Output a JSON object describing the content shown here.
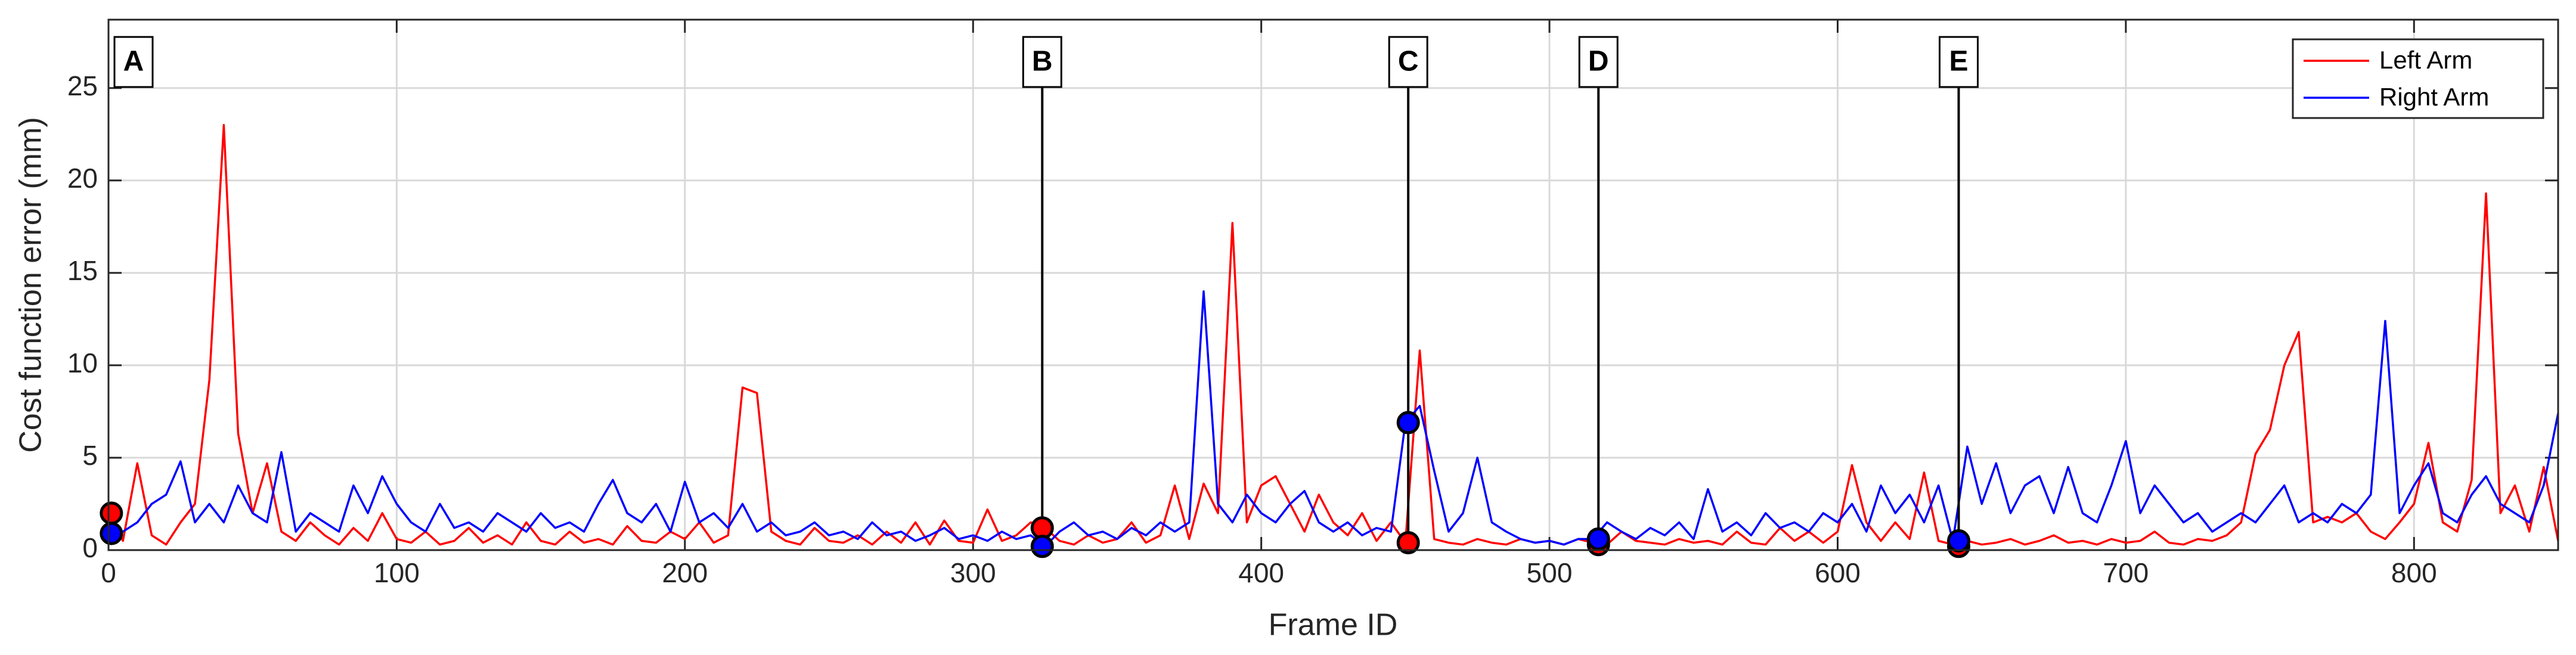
{
  "chart_data": {
    "type": "line",
    "xlabel": "Frame ID",
    "ylabel": "Cost function error (mm)",
    "xlim": [
      0,
      850
    ],
    "xticks": [
      0,
      100,
      200,
      300,
      400,
      500,
      600,
      700,
      800
    ],
    "ylim": [
      0,
      28.7
    ],
    "yticks": [
      0,
      5,
      10,
      15,
      20,
      25
    ],
    "grid": true,
    "legend": "top-right",
    "x": [
      0,
      5,
      10,
      15,
      20,
      25,
      30,
      35,
      40,
      45,
      50,
      55,
      60,
      65,
      70,
      75,
      80,
      85,
      90,
      95,
      100,
      105,
      110,
      115,
      120,
      125,
      130,
      135,
      140,
      145,
      150,
      155,
      160,
      165,
      170,
      175,
      180,
      185,
      190,
      195,
      200,
      205,
      210,
      215,
      220,
      225,
      230,
      235,
      240,
      245,
      250,
      255,
      260,
      265,
      270,
      275,
      280,
      285,
      290,
      295,
      300,
      305,
      310,
      315,
      320,
      325,
      330,
      335,
      340,
      345,
      350,
      355,
      360,
      365,
      370,
      375,
      380,
      385,
      390,
      395,
      400,
      405,
      410,
      415,
      420,
      425,
      430,
      435,
      440,
      445,
      450,
      455,
      460,
      465,
      470,
      475,
      480,
      485,
      490,
      495,
      500,
      505,
      510,
      515,
      520,
      525,
      530,
      535,
      540,
      545,
      550,
      555,
      560,
      565,
      570,
      575,
      580,
      585,
      590,
      595,
      600,
      605,
      610,
      615,
      620,
      625,
      630,
      635,
      640,
      645,
      650,
      655,
      660,
      665,
      670,
      675,
      680,
      685,
      690,
      695,
      700,
      705,
      710,
      715,
      720,
      725,
      730,
      735,
      740,
      745,
      750,
      755,
      760,
      765,
      770,
      775,
      780,
      785,
      790,
      795,
      800,
      805,
      810,
      815,
      820,
      825,
      830,
      835,
      840,
      845,
      850
    ],
    "series": [
      {
        "name": "Left Arm",
        "color": "#ff0000",
        "values": [
          2.0,
          0.5,
          4.7,
          0.8,
          0.3,
          1.5,
          2.5,
          9.2,
          23.0,
          6.3,
          2.0,
          4.7,
          1.0,
          0.5,
          1.5,
          0.8,
          0.3,
          1.2,
          0.5,
          2.0,
          0.6,
          0.4,
          1.0,
          0.3,
          0.5,
          1.2,
          0.4,
          0.8,
          0.3,
          1.5,
          0.5,
          0.3,
          1.0,
          0.4,
          0.6,
          0.3,
          1.3,
          0.5,
          0.4,
          1.0,
          0.6,
          1.5,
          0.4,
          0.8,
          8.8,
          8.5,
          1.0,
          0.5,
          0.3,
          1.2,
          0.5,
          0.4,
          0.8,
          0.3,
          1.0,
          0.4,
          1.5,
          0.3,
          1.6,
          0.5,
          0.4,
          2.2,
          0.5,
          0.8,
          1.5,
          1.2,
          0.5,
          0.3,
          0.8,
          0.4,
          0.6,
          1.5,
          0.4,
          0.8,
          3.5,
          0.6,
          3.6,
          2.0,
          17.7,
          1.5,
          3.5,
          4.0,
          2.5,
          1.0,
          3.0,
          1.5,
          0.8,
          2.0,
          0.5,
          1.5,
          0.4,
          10.8,
          0.6,
          0.4,
          0.3,
          0.6,
          0.4,
          0.3,
          0.6,
          0.4,
          0.5,
          0.3,
          0.6,
          0.4,
          0.3,
          1.0,
          0.5,
          0.4,
          0.3,
          0.6,
          0.4,
          0.5,
          0.3,
          1.0,
          0.4,
          0.3,
          1.2,
          0.5,
          1.0,
          0.4,
          1.0,
          4.6,
          1.5,
          0.5,
          1.5,
          0.6,
          4.2,
          0.5,
          0.3,
          0.5,
          0.3,
          0.4,
          0.6,
          0.3,
          0.5,
          0.8,
          0.4,
          0.5,
          0.3,
          0.6,
          0.4,
          0.5,
          1.0,
          0.4,
          0.3,
          0.6,
          0.5,
          0.8,
          1.5,
          5.2,
          6.5,
          10.0,
          11.8,
          1.5,
          1.8,
          1.5,
          2.0,
          1.0,
          0.6,
          1.5,
          2.5,
          5.8,
          1.5,
          1.0,
          3.8,
          19.3,
          2.0,
          3.5,
          1.0,
          4.5,
          0.5
        ]
      },
      {
        "name": "Right Arm",
        "color": "#0000ff",
        "values": [
          0.9,
          1.0,
          1.5,
          2.5,
          3.0,
          4.8,
          1.5,
          2.5,
          1.5,
          3.5,
          2.0,
          1.5,
          5.3,
          1.0,
          2.0,
          1.5,
          1.0,
          3.5,
          2.0,
          4.0,
          2.5,
          1.5,
          1.0,
          2.5,
          1.2,
          1.5,
          1.0,
          2.0,
          1.5,
          1.0,
          2.0,
          1.2,
          1.5,
          1.0,
          2.5,
          3.8,
          2.0,
          1.5,
          2.5,
          1.0,
          3.7,
          1.5,
          2.0,
          1.2,
          2.5,
          1.0,
          1.5,
          0.8,
          1.0,
          1.5,
          0.8,
          1.0,
          0.6,
          1.5,
          0.8,
          1.0,
          0.5,
          0.8,
          1.2,
          0.6,
          0.8,
          0.5,
          1.0,
          0.6,
          0.8,
          0.2,
          1.0,
          1.5,
          0.8,
          1.0,
          0.6,
          1.2,
          0.8,
          1.5,
          1.0,
          1.5,
          14.0,
          2.5,
          1.5,
          3.0,
          2.0,
          1.5,
          2.5,
          3.2,
          1.5,
          1.0,
          1.5,
          0.8,
          1.2,
          1.0,
          6.9,
          7.8,
          4.3,
          1.0,
          2.0,
          5.0,
          1.5,
          1.0,
          0.6,
          0.4,
          0.5,
          0.3,
          0.6,
          0.6,
          1.5,
          1.0,
          0.6,
          1.2,
          0.8,
          1.5,
          0.6,
          3.3,
          1.0,
          1.5,
          0.8,
          2.0,
          1.2,
          1.5,
          1.0,
          2.0,
          1.5,
          2.5,
          1.0,
          3.5,
          2.0,
          3.0,
          1.5,
          3.5,
          0.5,
          5.6,
          2.5,
          4.7,
          2.0,
          3.5,
          4.0,
          2.0,
          4.5,
          2.0,
          1.5,
          3.5,
          5.9,
          2.0,
          3.5,
          2.5,
          1.5,
          2.0,
          1.0,
          1.5,
          2.0,
          1.5,
          2.5,
          3.5,
          1.5,
          2.0,
          1.5,
          2.5,
          2.0,
          3.0,
          12.4,
          2.0,
          3.5,
          4.7,
          2.0,
          1.5,
          3.0,
          4.0,
          2.5,
          2.0,
          1.5,
          3.5,
          7.4
        ]
      }
    ],
    "annotations": [
      {
        "label": "A",
        "x": 1,
        "left": 2.0,
        "right": 0.9
      },
      {
        "label": "B",
        "x": 324,
        "left": 1.2,
        "right": 0.2
      },
      {
        "label": "C",
        "x": 451,
        "left": 0.4,
        "right": 6.9
      },
      {
        "label": "D",
        "x": 517,
        "left": 0.3,
        "right": 0.6
      },
      {
        "label": "E",
        "x": 642,
        "left": 0.2,
        "right": 0.5
      }
    ]
  }
}
